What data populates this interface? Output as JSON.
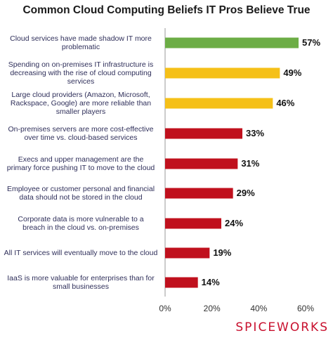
{
  "chart_data": {
    "type": "bar",
    "orientation": "horizontal",
    "title": "Common Cloud Computing Beliefs IT Pros Believe True",
    "categories": [
      "Cloud services have made shadow IT more\nproblematic",
      "Spending on on-premises IT infrastructure is\ndecreasing with the rise of cloud computing\nservices",
      "Large cloud providers (Amazon, Microsoft,\nRackspace, Google) are more reliable than\nsmaller players",
      "On-premises servers are more cost-effective\nover time vs. cloud-based services",
      "Execs and upper management are the\nprimary force pushing IT to move to the cloud",
      "Employee or customer personal and financial\ndata should not be stored in the cloud",
      "Corporate data is more vulnerable to a\nbreach in the cloud vs. on-premises",
      "All IT services will eventually move to the cloud",
      "IaaS is more valuable for enterprises than for\nsmall businesses"
    ],
    "values": [
      57,
      49,
      46,
      33,
      31,
      29,
      24,
      19,
      14
    ],
    "value_labels": [
      "57%",
      "49%",
      "46%",
      "33%",
      "31%",
      "29%",
      "24%",
      "19%",
      "14%"
    ],
    "bar_colors": [
      "#6cad45",
      "#f5c018",
      "#f5c018",
      "#c0101d",
      "#c0101d",
      "#c0101d",
      "#c0101d",
      "#c0101d",
      "#c0101d"
    ],
    "xlim": [
      0,
      60
    ],
    "xticks": [
      0,
      20,
      40,
      60
    ],
    "xtick_labels": [
      "0%",
      "20%",
      "40%",
      "60%"
    ],
    "grid": false,
    "legend": "none"
  },
  "brand": "SPICEWORKS"
}
